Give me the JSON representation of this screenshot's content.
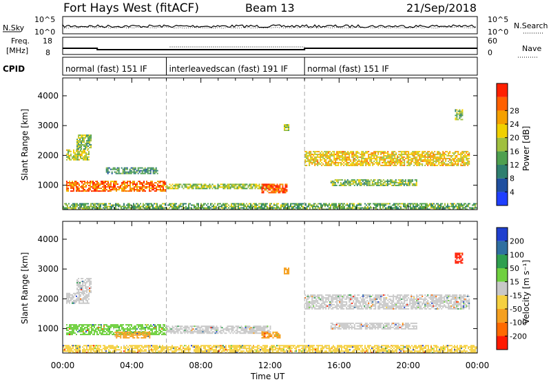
{
  "header": {
    "title": "Fort Hays West (fitACF)",
    "beam": "Beam 13",
    "date": "21/Sep/2018"
  },
  "sky_panel": {
    "left_label": "N.Sky",
    "right_label": "N.Search",
    "left_ticks": [
      "10^5",
      "10^0"
    ],
    "right_ticks": [
      "10^5",
      "10^0"
    ]
  },
  "freq_panel": {
    "left_label_1": "Freq.",
    "left_label_2": "[MHz]",
    "right_label": "Nave",
    "left_ticks": [
      "18",
      "8"
    ],
    "right_ticks": [
      "60",
      "0"
    ]
  },
  "cpid": {
    "label": "CPID",
    "segments": [
      {
        "label": "normal (fast) 151 IF",
        "start_hour": 0,
        "end_hour": 6
      },
      {
        "label": "interleavedscan (fast) 191 IF",
        "start_hour": 6,
        "end_hour": 14
      },
      {
        "label": "normal (fast) 151 IF",
        "start_hour": 14,
        "end_hour": 24
      }
    ]
  },
  "chart_data": [
    {
      "type": "heatmap",
      "name": "power",
      "ylabel": "Slant Range [km]",
      "xlabel": "Time UT",
      "xlim": [
        0,
        24
      ],
      "ylim": [
        180,
        4600
      ],
      "yticks": [
        "1000",
        "2000",
        "3000",
        "4000"
      ],
      "xticks": [
        "00:00",
        "04:00",
        "08:00",
        "12:00",
        "16:00",
        "20:00",
        "00:00"
      ],
      "colorbar_label": "Power [dB]",
      "colorbar_ticks": [
        "4",
        "8",
        "12",
        "16",
        "20",
        "24",
        "28"
      ],
      "colorbar_colors": [
        "#1f3fff",
        "#1f4f9f",
        "#2f7f6f",
        "#4fa04f",
        "#a0c040",
        "#f0d000",
        "#f5a000",
        "#ff6000",
        "#ff2000"
      ],
      "regions": [
        {
          "t0": 0.2,
          "t1": 1.5,
          "r0": 1850,
          "r1": 2200,
          "level": 0.55
        },
        {
          "t0": 0.8,
          "t1": 1.6,
          "r0": 2200,
          "r1": 2700,
          "level": 0.45
        },
        {
          "t0": 0.2,
          "t1": 6.0,
          "r0": 800,
          "r1": 1150,
          "level": 0.85
        },
        {
          "t0": 6.0,
          "t1": 12.0,
          "r0": 900,
          "r1": 1050,
          "level": 0.5
        },
        {
          "t0": 11.5,
          "t1": 13.0,
          "r0": 750,
          "r1": 1050,
          "level": 0.9
        },
        {
          "t0": 0.0,
          "t1": 24.0,
          "r0": 200,
          "r1": 400,
          "level": 0.4
        },
        {
          "t0": 2.5,
          "t1": 5.5,
          "r0": 1400,
          "r1": 1600,
          "level": 0.3
        },
        {
          "t0": 14.0,
          "t1": 23.5,
          "r0": 1650,
          "r1": 2150,
          "level": 0.65
        },
        {
          "t0": 15.5,
          "t1": 20.5,
          "r0": 1000,
          "r1": 1200,
          "level": 0.45
        },
        {
          "t0": 12.8,
          "t1": 13.1,
          "r0": 2850,
          "r1": 3050,
          "level": 0.5
        },
        {
          "t0": 22.7,
          "t1": 23.1,
          "r0": 3200,
          "r1": 3550,
          "level": 0.45
        }
      ]
    },
    {
      "type": "heatmap",
      "name": "velocity",
      "ylabel": "Slant Range [km]",
      "xlabel": "Time UT",
      "xlim": [
        0,
        24
      ],
      "ylim": [
        180,
        4600
      ],
      "yticks": [
        "1000",
        "2000",
        "3000",
        "4000"
      ],
      "xticks": [
        "00:00",
        "04:00",
        "08:00",
        "12:00",
        "16:00",
        "20:00",
        "00:00"
      ],
      "colorbar_label": "Velocity [m s⁻¹]",
      "colorbar_ticks": [
        "200",
        "100",
        "50",
        "15",
        "-15",
        "-50",
        "-100",
        "-200"
      ],
      "colorbar_colors": [
        "#1f3fcf",
        "#2f6fa0",
        "#2f9f4f",
        "#6fd03f",
        "#c8c8c8",
        "#f5d040",
        "#f5a020",
        "#ff6a00",
        "#ff1a00"
      ],
      "regions": [
        {
          "t0": 0.2,
          "t1": 1.5,
          "r0": 1850,
          "r1": 2200,
          "class": "grey"
        },
        {
          "t0": 0.8,
          "t1": 1.6,
          "r0": 2200,
          "r1": 2700,
          "class": "grey"
        },
        {
          "t0": 0.2,
          "t1": 6.0,
          "r0": 800,
          "r1": 1150,
          "class": "green"
        },
        {
          "t0": 3.0,
          "t1": 5.0,
          "r0": 700,
          "r1": 900,
          "class": "orange"
        },
        {
          "t0": 6.0,
          "t1": 12.0,
          "r0": 850,
          "r1": 1100,
          "class": "grey"
        },
        {
          "t0": 11.5,
          "t1": 12.6,
          "r0": 700,
          "r1": 900,
          "class": "orange"
        },
        {
          "t0": 0.0,
          "t1": 24.0,
          "r0": 200,
          "r1": 450,
          "class": "yellow"
        },
        {
          "t0": 14.0,
          "t1": 23.5,
          "r0": 1650,
          "r1": 2150,
          "class": "grey"
        },
        {
          "t0": 15.5,
          "t1": 20.5,
          "r0": 1000,
          "r1": 1200,
          "class": "grey"
        },
        {
          "t0": 12.8,
          "t1": 13.1,
          "r0": 2850,
          "r1": 3050,
          "class": "orange"
        },
        {
          "t0": 22.7,
          "t1": 23.1,
          "r0": 3200,
          "r1": 3550,
          "class": "red"
        }
      ]
    }
  ]
}
